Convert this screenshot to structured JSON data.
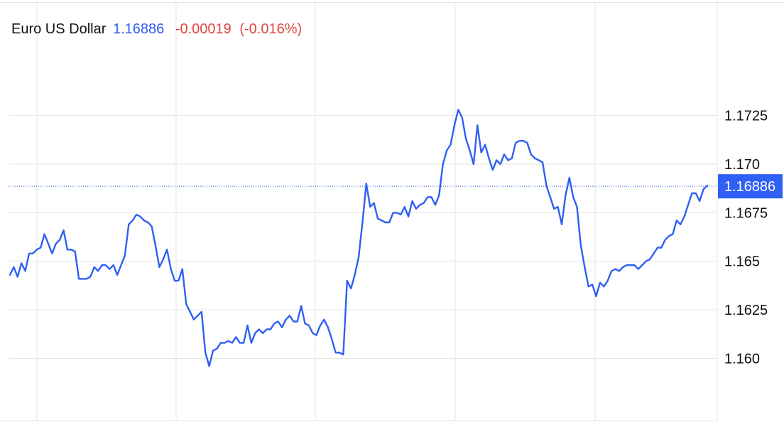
{
  "header": {
    "instrument": "Euro US Dollar",
    "price": "1.16886",
    "change": "-0.00019",
    "change_pct": "(-0.016%)"
  },
  "colors": {
    "line": "#2f5ff3",
    "price_text": "#2f5ff3",
    "negative": "#e0473f",
    "grid": "#e6e6e6",
    "badge_bg": "#2f5ff3",
    "badge_text": "#ffffff"
  },
  "chart_data": {
    "type": "line",
    "title": "Euro US Dollar",
    "xlabel": "",
    "ylabel": "",
    "ylim": [
      1.1568,
      1.1783
    ],
    "yticks": [
      1.16,
      1.1625,
      1.165,
      1.1675,
      1.17,
      1.1725
    ],
    "ytick_labels": [
      "1.160",
      "1.1625",
      "1.165",
      "1.1675",
      "1.170",
      "1.1725"
    ],
    "grid": true,
    "axis_position": "right",
    "last_value": 1.16886,
    "last_value_label": "1.16886",
    "series": [
      {
        "values": [
          1.1643,
          1.1647,
          1.1642,
          1.1649,
          1.1645,
          1.1654,
          1.1654,
          1.1656,
          1.1657,
          1.1664,
          1.1659,
          1.1654,
          1.1659,
          1.1661,
          1.1666,
          1.1656,
          1.1656,
          1.1655,
          1.1641,
          1.1641,
          1.1641,
          1.1642,
          1.1647,
          1.1645,
          1.1648,
          1.1648,
          1.1646,
          1.1648,
          1.1643,
          1.1648,
          1.1653,
          1.1669,
          1.1671,
          1.1674,
          1.1673,
          1.1671,
          1.167,
          1.1668,
          1.1658,
          1.1647,
          1.1651,
          1.1656,
          1.1646,
          1.164,
          1.164,
          1.1646,
          1.1628,
          1.1624,
          1.162,
          1.1622,
          1.1624,
          1.1603,
          1.1596,
          1.1604,
          1.1605,
          1.1608,
          1.1608,
          1.1609,
          1.1608,
          1.1611,
          1.1608,
          1.1608,
          1.1617,
          1.1608,
          1.1613,
          1.1615,
          1.1613,
          1.1615,
          1.1615,
          1.1618,
          1.1619,
          1.1616,
          1.162,
          1.1622,
          1.1619,
          1.1619,
          1.1627,
          1.1618,
          1.1617,
          1.1613,
          1.1612,
          1.1617,
          1.162,
          1.1616,
          1.161,
          1.1603,
          1.1603,
          1.1602,
          1.164,
          1.1636,
          1.1643,
          1.1652,
          1.167,
          1.169,
          1.1678,
          1.168,
          1.1672,
          1.1671,
          1.167,
          1.167,
          1.1675,
          1.1675,
          1.1674,
          1.1678,
          1.1673,
          1.1681,
          1.1677,
          1.1679,
          1.168,
          1.1683,
          1.1683,
          1.1679,
          1.1684,
          1.17,
          1.1707,
          1.171,
          1.172,
          1.1728,
          1.1724,
          1.1713,
          1.1707,
          1.17,
          1.172,
          1.1706,
          1.171,
          1.1703,
          1.1697,
          1.1702,
          1.17,
          1.1705,
          1.1702,
          1.1703,
          1.1711,
          1.1712,
          1.1712,
          1.1711,
          1.1705,
          1.1703,
          1.1702,
          1.1701,
          1.1689,
          1.1683,
          1.1677,
          1.1678,
          1.1669,
          1.1684,
          1.1693,
          1.1683,
          1.1678,
          1.1658,
          1.1647,
          1.1637,
          1.1638,
          1.1632,
          1.1639,
          1.1637,
          1.164,
          1.1645,
          1.1646,
          1.1645,
          1.1647,
          1.1648,
          1.1648,
          1.1648,
          1.1646,
          1.1648,
          1.165,
          1.1651,
          1.1654,
          1.1657,
          1.1657,
          1.1661,
          1.1663,
          1.1664,
          1.1671,
          1.1669,
          1.1673,
          1.1679,
          1.1685,
          1.1685,
          1.1681,
          1.1687,
          1.1689
        ]
      }
    ]
  }
}
